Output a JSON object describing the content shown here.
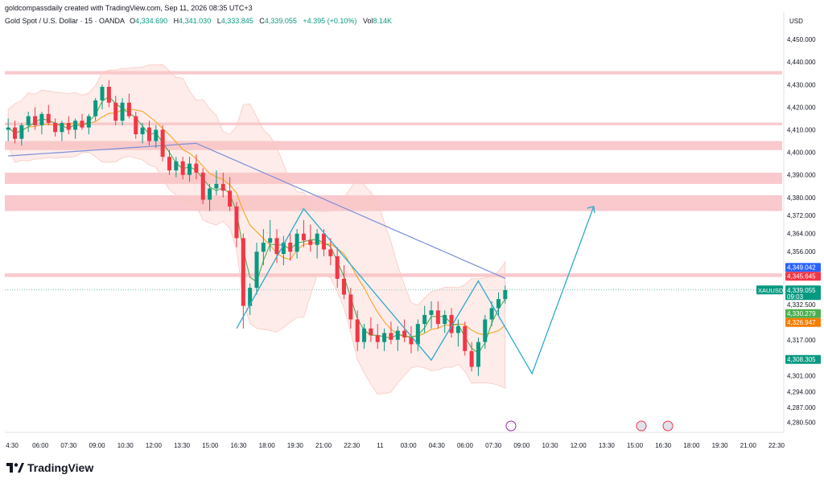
{
  "header": {
    "caption": "goldcompassdaily created with TradingView.com, Sep 11, 2026 08:35 UTC+3"
  },
  "symbol": {
    "name": "Gold Spot / U.S. Dollar · 15 · OANDA",
    "open_label": "O",
    "open": "4,334.690",
    "high_label": "H",
    "high": "4,341.030",
    "low_label": "L",
    "low": "4,333.845",
    "close_label": "C",
    "close": "4,339.055",
    "change": "+4.395 (+0.10%)",
    "vol_label": "Vol",
    "vol": "8.14K"
  },
  "currency": "USD",
  "brand": "TradingView",
  "colors": {
    "up": "#089981",
    "down": "#f23645",
    "zone": "#f7b7bd",
    "ma200": "#7b8fd9",
    "ma_fast": "#4caf50",
    "ma_slow": "#f5a623",
    "bands": "#f8c9c2",
    "projection": "#2eaacb"
  },
  "chart_data": {
    "type": "candlestick",
    "instrument": "XAUUSD",
    "timeframe": "15",
    "ylim": [
      4276,
      4455
    ],
    "y_ticks": [
      4450.0,
      4440.0,
      4430.0,
      4420.0,
      4410.0,
      4400.0,
      4390.0,
      4380.0,
      4372.0,
      4364.0,
      4356.0,
      4317.0,
      4301.0,
      4294.0,
      4287.0,
      4280.5
    ],
    "y_tick_labels": [
      "4,450.000",
      "4,440.000",
      "4,430.000",
      "4,420.000",
      "4,410.000",
      "4,400.000",
      "4,390.000",
      "4,380.000",
      "4,372.000",
      "4,364.000",
      "4,356.000",
      "4,317.000",
      "4,301.000",
      "4,294.000",
      "4,287.000",
      "4,280.500"
    ],
    "x_tick_labels": [
      "4:30",
      "06:00",
      "07:30",
      "09:00",
      "10:30",
      "12:00",
      "13:30",
      "15:00",
      "16:30",
      "18:00",
      "19:30",
      "21:00",
      "22:30",
      "11",
      "03:00",
      "04:30",
      "06:00",
      "07:30",
      "09:00",
      "10:30",
      "12:00",
      "13:30",
      "15:00",
      "16:30",
      "18:00",
      "19:30",
      "21:00",
      "22:30"
    ],
    "price_markers": [
      {
        "label": "XAUUSD",
        "value": 4339.055,
        "text": "4,339.055",
        "sub": "09:03",
        "color": "#089981"
      },
      {
        "value": 4349.042,
        "text": "4,349.042",
        "color": "#2962ff"
      },
      {
        "value": 4345.645,
        "text": "4,345.645",
        "color": "#f23645"
      },
      {
        "value": 4332.5,
        "text": "4,332.500",
        "color": "#ffffff"
      },
      {
        "value": 4330.279,
        "text": "4,330.279",
        "color": "#4caf50"
      },
      {
        "value": 4326.947,
        "text": "4,326.947",
        "color": "#f57c00"
      },
      {
        "value": 4308.305,
        "text": "4,308.305",
        "color": "#089981"
      }
    ],
    "zones": [
      {
        "low": 4434.5,
        "high": 4436.0
      },
      {
        "low": 4412.0,
        "high": 4413.2
      },
      {
        "low": 4401.0,
        "high": 4405.0
      },
      {
        "low": 4386.0,
        "high": 4391.0
      },
      {
        "low": 4374.0,
        "high": 4381.0
      },
      {
        "low": 4344.8,
        "high": 4346.4
      }
    ],
    "candles": [
      [
        4410,
        4415,
        4405,
        4411
      ],
      [
        4411,
        4414,
        4404,
        4406
      ],
      [
        4406,
        4413,
        4403,
        4412
      ],
      [
        4412,
        4418,
        4409,
        4416
      ],
      [
        4416,
        4420,
        4410,
        4412
      ],
      [
        4412,
        4418,
        4408,
        4417
      ],
      [
        4417,
        4421,
        4412,
        4413
      ],
      [
        4413,
        4415,
        4407,
        4409
      ],
      [
        4409,
        4414,
        4405,
        4413
      ],
      [
        4413,
        4416,
        4408,
        4410
      ],
      [
        4410,
        4415,
        4406,
        4414
      ],
      [
        4414,
        4417,
        4410,
        4411
      ],
      [
        4411,
        4417,
        4408,
        4416
      ],
      [
        4416,
        4424,
        4414,
        4423
      ],
      [
        4423,
        4430,
        4419,
        4429
      ],
      [
        4429,
        4432,
        4420,
        4422
      ],
      [
        4422,
        4425,
        4412,
        4414
      ],
      [
        4414,
        4424,
        4412,
        4422
      ],
      [
        4422,
        4426,
        4415,
        4416
      ],
      [
        4416,
        4418,
        4406,
        4408
      ],
      [
        4408,
        4413,
        4404,
        4411
      ],
      [
        4411,
        4414,
        4403,
        4405
      ],
      [
        4405,
        4412,
        4402,
        4410
      ],
      [
        4410,
        4412,
        4396,
        4398
      ],
      [
        4398,
        4401,
        4390,
        4392
      ],
      [
        4392,
        4398,
        4389,
        4396
      ],
      [
        4396,
        4398,
        4388,
        4390
      ],
      [
        4390,
        4398,
        4387,
        4395
      ],
      [
        4395,
        4399,
        4388,
        4391
      ],
      [
        4391,
        4393,
        4377,
        4379
      ],
      [
        4379,
        4386,
        4374,
        4384
      ],
      [
        4384,
        4392,
        4381,
        4386
      ],
      [
        4386,
        4391,
        4380,
        4383
      ],
      [
        4383,
        4389,
        4374,
        4376
      ],
      [
        4376,
        4378,
        4358,
        4362
      ],
      [
        4362,
        4364,
        4322,
        4332
      ],
      [
        4332,
        4342,
        4328,
        4340
      ],
      [
        4340,
        4360,
        4337,
        4356
      ],
      [
        4356,
        4366,
        4350,
        4360
      ],
      [
        4360,
        4370,
        4356,
        4362
      ],
      [
        4362,
        4366,
        4351,
        4355
      ],
      [
        4355,
        4363,
        4350,
        4360
      ],
      [
        4360,
        4364,
        4352,
        4356
      ],
      [
        4356,
        4366,
        4353,
        4364
      ],
      [
        4364,
        4370,
        4358,
        4361
      ],
      [
        4361,
        4368,
        4356,
        4359
      ],
      [
        4359,
        4366,
        4353,
        4364
      ],
      [
        4364,
        4366,
        4354,
        4357
      ],
      [
        4357,
        4362,
        4350,
        4354
      ],
      [
        4354,
        4358,
        4340,
        4344
      ],
      [
        4344,
        4350,
        4335,
        4337
      ],
      [
        4337,
        4340,
        4322,
        4326
      ],
      [
        4326,
        4330,
        4312,
        4316
      ],
      [
        4316,
        4324,
        4313,
        4322
      ],
      [
        4322,
        4327,
        4316,
        4319
      ],
      [
        4319,
        4324,
        4313,
        4316
      ],
      [
        4316,
        4322,
        4312,
        4320
      ],
      [
        4320,
        4325,
        4315,
        4317
      ],
      [
        4317,
        4323,
        4312,
        4321
      ],
      [
        4321,
        4326,
        4316,
        4318
      ],
      [
        4318,
        4323,
        4311,
        4315
      ],
      [
        4315,
        4326,
        4312,
        4324
      ],
      [
        4324,
        4332,
        4320,
        4328
      ],
      [
        4328,
        4334,
        4322,
        4330
      ],
      [
        4330,
        4334,
        4322,
        4324
      ],
      [
        4324,
        4330,
        4320,
        4328
      ],
      [
        4328,
        4331,
        4318,
        4320
      ],
      [
        4320,
        4326,
        4314,
        4323
      ],
      [
        4323,
        4325,
        4310,
        4312
      ],
      [
        4312,
        4316,
        4303,
        4305
      ],
      [
        4305,
        4318,
        4301,
        4316
      ],
      [
        4316,
        4328,
        4313,
        4326
      ],
      [
        4326,
        4334,
        4323,
        4331
      ],
      [
        4331,
        4338,
        4328,
        4335
      ],
      [
        4335,
        4341,
        4333,
        4339
      ]
    ]
  }
}
